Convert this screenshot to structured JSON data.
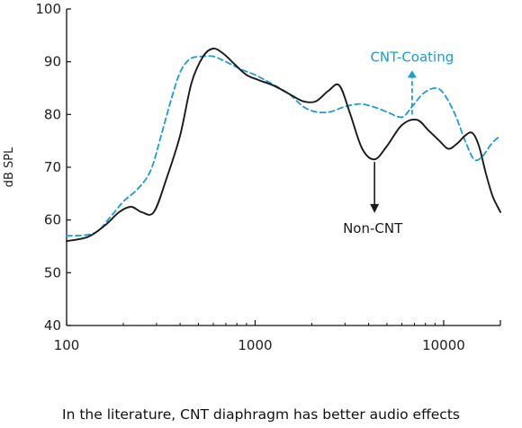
{
  "caption": "In the literature, CNT diaphragm has better audio effects",
  "chart_data": {
    "type": "line",
    "title": "",
    "xlabel": "",
    "ylabel": "dB SPL",
    "xscale": "log",
    "xlim": [
      100,
      20000
    ],
    "ylim": [
      40,
      100
    ],
    "xticks": [
      100,
      1000,
      10000
    ],
    "xtick_labels": [
      "100",
      "1000",
      "10000"
    ],
    "yticks": [
      40,
      50,
      60,
      70,
      80,
      90,
      100
    ],
    "ytick_labels": [
      "40",
      "50",
      "60",
      "70",
      "80",
      "90",
      "100"
    ],
    "grid": false,
    "series": [
      {
        "name": "Non-CNT",
        "color": "#1a1a1a",
        "style": "solid",
        "x": [
          100,
          130,
          160,
          190,
          220,
          250,
          290,
          340,
          400,
          460,
          530,
          600,
          680,
          780,
          900,
          1050,
          1250,
          1500,
          1800,
          2100,
          2450,
          2800,
          3200,
          3700,
          4300,
          5000,
          6000,
          7200,
          8300,
          9500,
          10600,
          11800,
          13000,
          14200,
          15400,
          16700,
          18200,
          20000
        ],
        "y": [
          56,
          56.8,
          59,
          61.5,
          62.5,
          61.5,
          61.5,
          68,
          76,
          86,
          91,
          92.5,
          91.5,
          89.5,
          87.5,
          86.5,
          85.5,
          84,
          82.5,
          82.5,
          84.5,
          85.5,
          80,
          73.5,
          71.5,
          74,
          78,
          79,
          77,
          75,
          73.5,
          74.5,
          76,
          76.5,
          74,
          69,
          64.5,
          61.5
        ]
      },
      {
        "name": "CNT-Coating",
        "color": "#1b9bd7",
        "style": "dashed",
        "x": [
          100,
          140,
          170,
          200,
          240,
          280,
          320,
          360,
          400,
          450,
          520,
          600,
          700,
          850,
          1000,
          1200,
          1500,
          1800,
          2100,
          2500,
          3000,
          3600,
          4200,
          5000,
          6000,
          6800,
          7800,
          9000,
          10000,
          11500,
          13000,
          14500,
          16000,
          18000,
          20000
        ],
        "y": [
          57,
          57.5,
          60.5,
          63.5,
          66,
          69.5,
          76.5,
          83,
          88,
          90.5,
          91,
          91,
          90,
          88.5,
          87.5,
          86,
          84,
          81.5,
          80.5,
          80.5,
          81.5,
          82,
          81.5,
          80.5,
          79.5,
          81.5,
          84,
          85,
          84,
          80,
          75,
          71.5,
          72,
          74.5,
          76
        ]
      }
    ],
    "annotations": [
      {
        "text": "CNT-Coating",
        "color": "#1b9bd7",
        "arrow": "up",
        "x": 6800,
        "y_from": 80,
        "y_to": 88
      },
      {
        "text": "Non-CNT",
        "color": "#1a1a1a",
        "arrow": "down",
        "x": 4300,
        "y_from": 71,
        "y_to": 61.5
      }
    ]
  }
}
